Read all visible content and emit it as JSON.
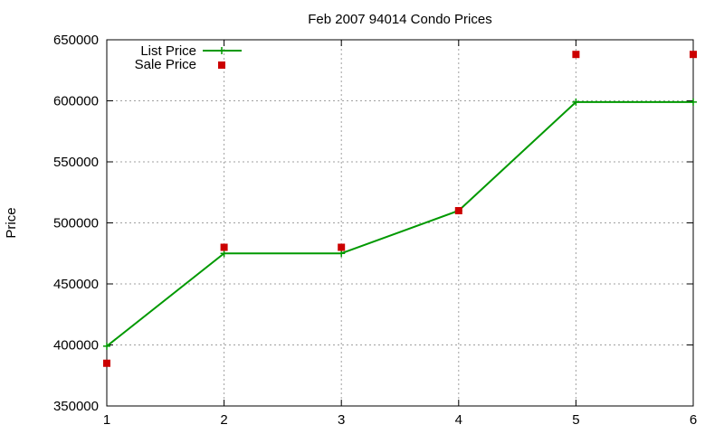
{
  "chart_data": {
    "type": "line",
    "title": "Feb 2007 94014 Condo Prices",
    "xlabel": "",
    "ylabel": "Price",
    "x": [
      1,
      2,
      3,
      4,
      5,
      6
    ],
    "xlim": [
      1,
      6
    ],
    "ylim": [
      350000,
      650000
    ],
    "xticks": [
      "1",
      "2",
      "3",
      "4",
      "5",
      "6"
    ],
    "yticks": [
      "350000",
      "400000",
      "450000",
      "500000",
      "550000",
      "600000",
      "650000"
    ],
    "grid": true,
    "legend_position": "top-left",
    "series": [
      {
        "name": "List Price",
        "style": "line with plus markers",
        "color": "#009900",
        "values": [
          399000,
          475000,
          475000,
          510000,
          599000,
          599000
        ]
      },
      {
        "name": "Sale Price",
        "style": "square markers",
        "color": "#cc0000",
        "values": [
          385000,
          480000,
          480000,
          510000,
          638000,
          638000
        ]
      }
    ]
  }
}
